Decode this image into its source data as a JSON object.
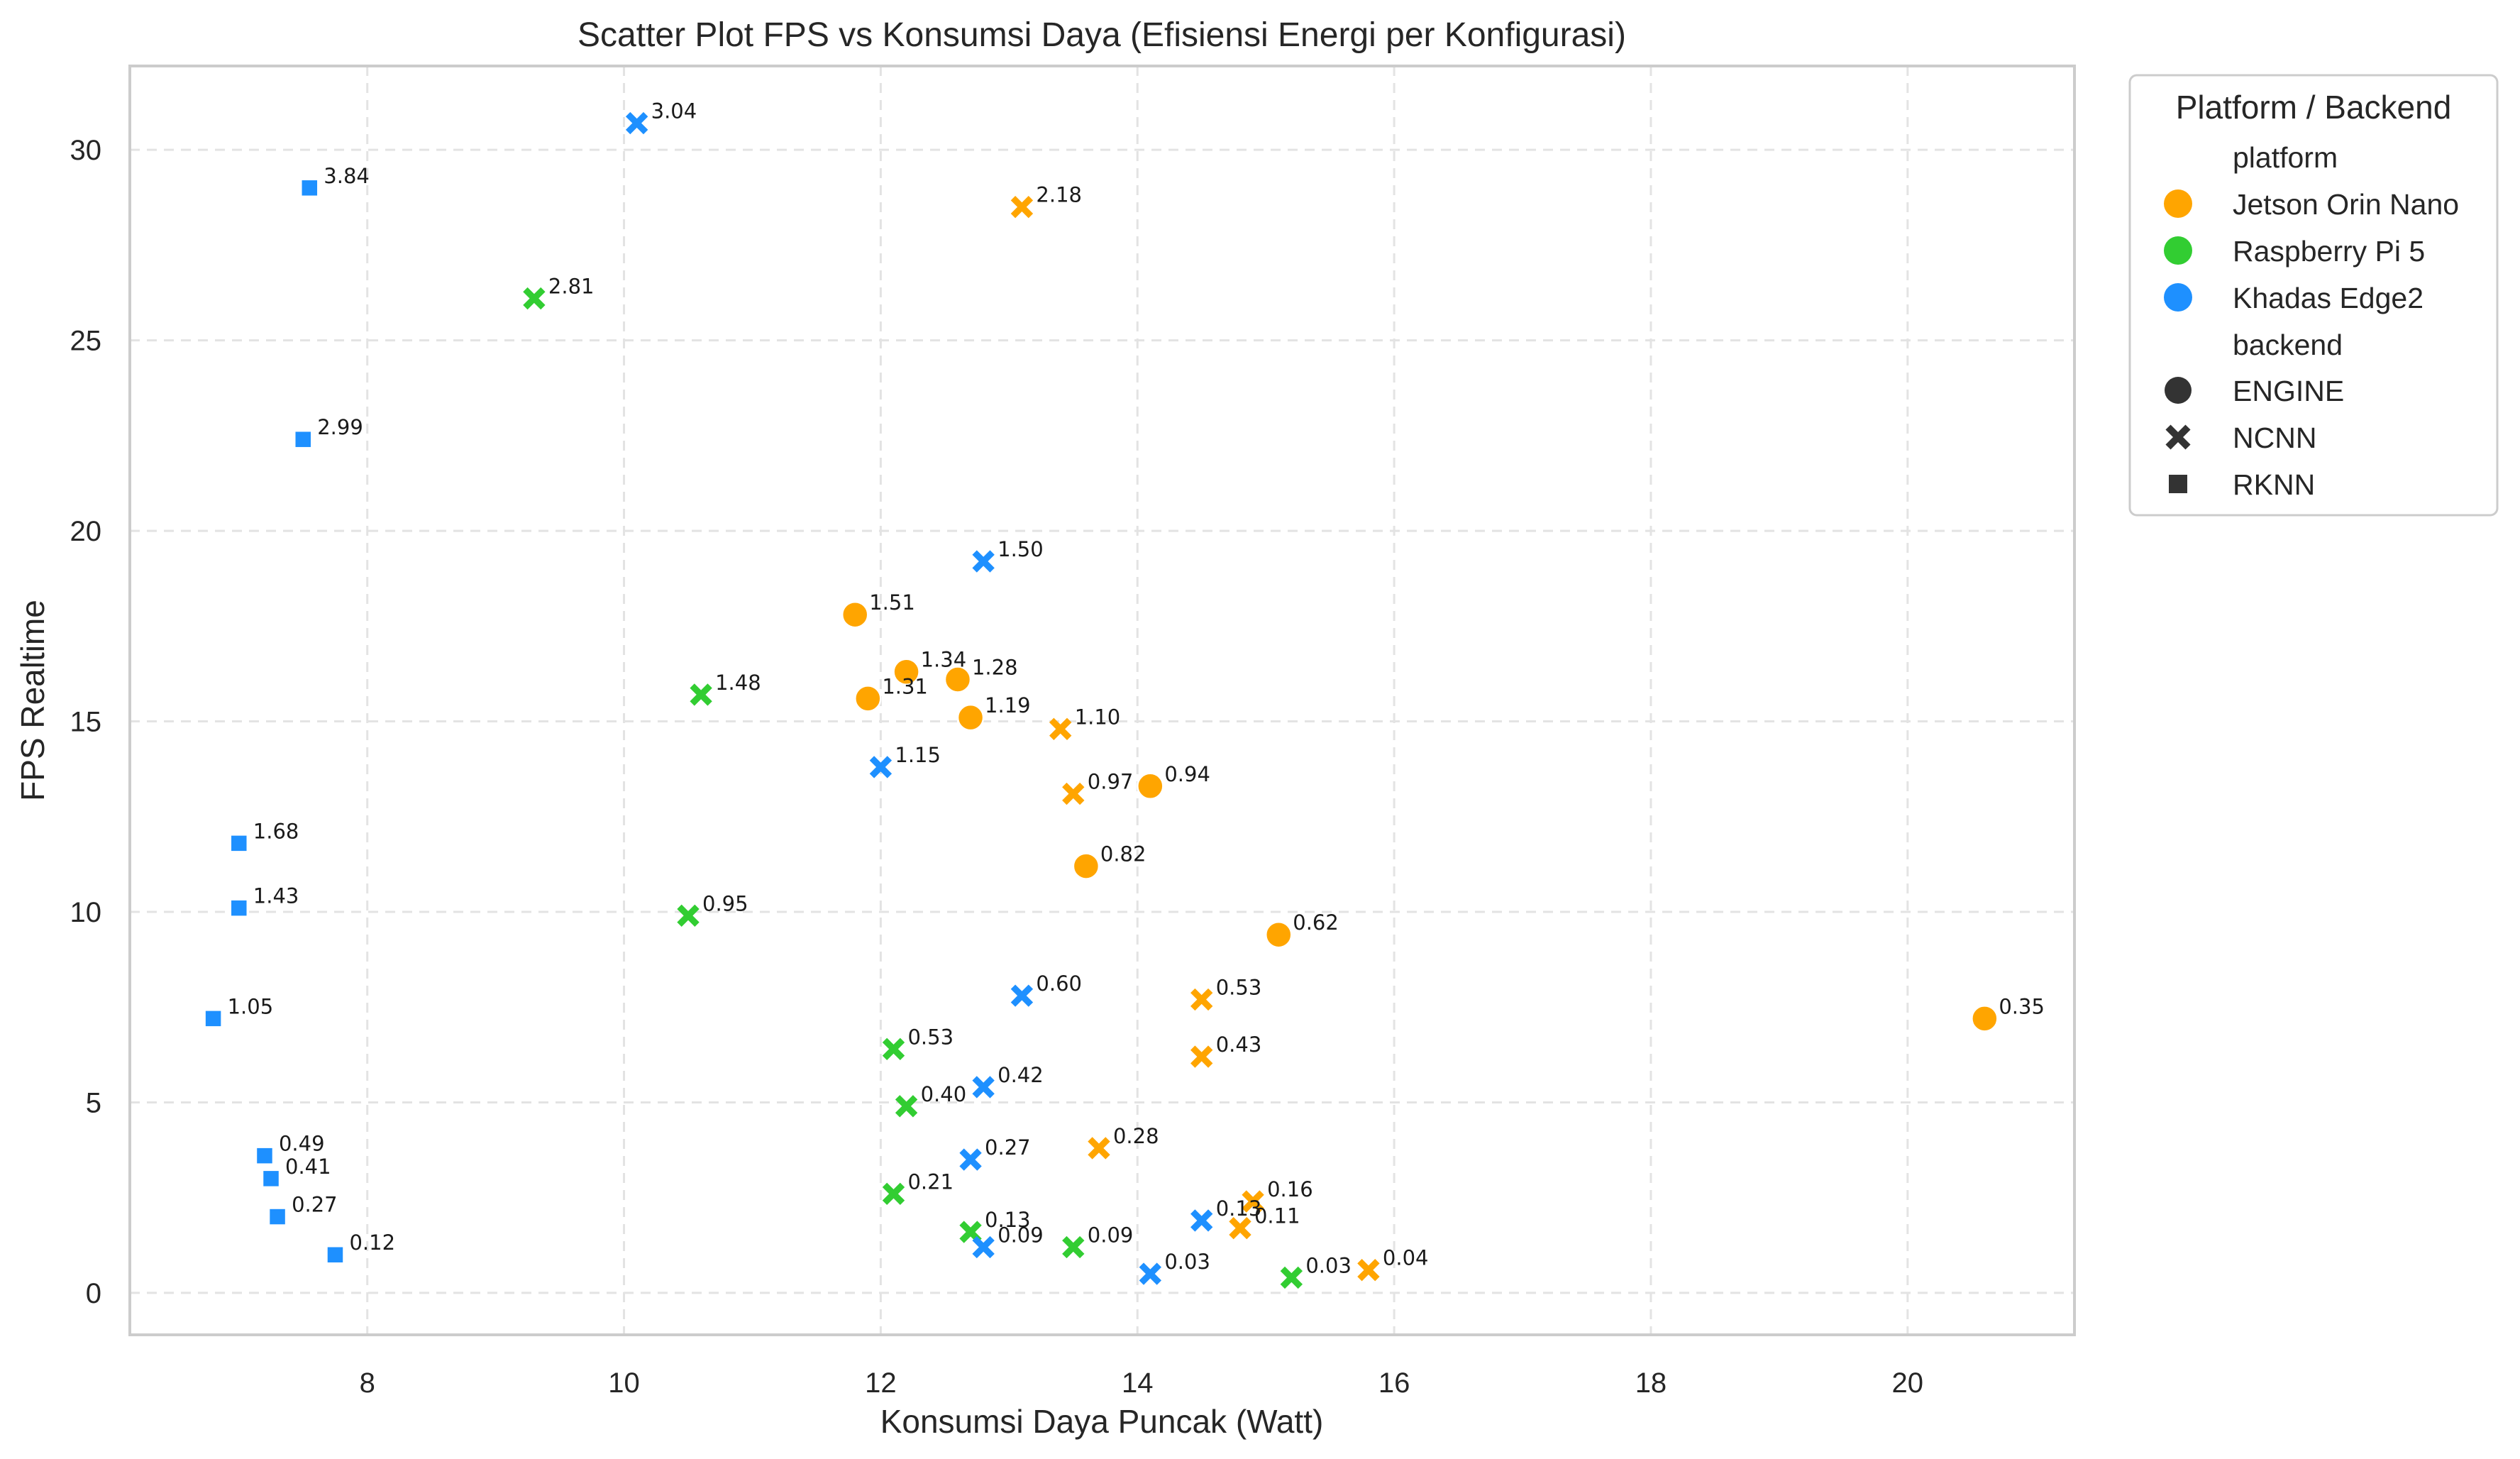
{
  "chart_data": {
    "type": "scatter",
    "title": "Scatter Plot FPS vs Konsumsi Daya (Efisiensi Energi per Konfigurasi)",
    "xlabel": "Konsumsi Daya Puncak (Watt)",
    "ylabel": "FPS Realtime",
    "xlim": [
      6.15,
      21.3
    ],
    "ylim": [
      -1.1,
      32.2
    ],
    "xticks": [
      8,
      10,
      12,
      14,
      16,
      18,
      20
    ],
    "yticks": [
      0,
      5,
      10,
      15,
      20,
      25,
      30
    ],
    "grid": true,
    "legend_position": "outside-right",
    "legend": {
      "title": "Platform / Backend",
      "hue_header": "platform",
      "style_header": "backend",
      "platforms": [
        {
          "name": "Jetson Orin Nano",
          "color": "#FFA500"
        },
        {
          "name": "Raspberry Pi 5",
          "color": "#32CD32"
        },
        {
          "name": "Khadas Edge2",
          "color": "#1E90FF"
        }
      ],
      "backends": [
        {
          "name": "ENGINE",
          "marker": "circle"
        },
        {
          "name": "NCNN",
          "marker": "x"
        },
        {
          "name": "RKNN",
          "marker": "square"
        }
      ]
    },
    "series": [
      {
        "platform": "Jetson Orin Nano",
        "backend": "ENGINE",
        "points": [
          {
            "x": 11.8,
            "y": 17.8,
            "label": "1.51"
          },
          {
            "x": 12.2,
            "y": 16.3,
            "label": "1.34"
          },
          {
            "x": 12.6,
            "y": 16.1,
            "label": "1.28"
          },
          {
            "x": 11.9,
            "y": 15.6,
            "label": "1.31"
          },
          {
            "x": 12.7,
            "y": 15.1,
            "label": "1.19"
          },
          {
            "x": 14.1,
            "y": 13.3,
            "label": "0.94"
          },
          {
            "x": 13.6,
            "y": 11.2,
            "label": "0.82"
          },
          {
            "x": 15.1,
            "y": 9.4,
            "label": "0.62"
          },
          {
            "x": 20.6,
            "y": 7.2,
            "label": "0.35"
          }
        ]
      },
      {
        "platform": "Jetson Orin Nano",
        "backend": "NCNN",
        "points": [
          {
            "x": 13.1,
            "y": 28.5,
            "label": "2.18"
          },
          {
            "x": 13.4,
            "y": 14.8,
            "label": "1.10"
          },
          {
            "x": 13.5,
            "y": 13.1,
            "label": "0.97"
          },
          {
            "x": 14.5,
            "y": 7.7,
            "label": "0.53"
          },
          {
            "x": 14.5,
            "y": 6.2,
            "label": "0.43"
          },
          {
            "x": 13.7,
            "y": 3.8,
            "label": "0.28"
          },
          {
            "x": 14.9,
            "y": 2.4,
            "label": "0.16"
          },
          {
            "x": 14.8,
            "y": 1.7,
            "label": "0.11"
          },
          {
            "x": 15.8,
            "y": 0.6,
            "label": "0.04"
          }
        ]
      },
      {
        "platform": "Raspberry Pi 5",
        "backend": "NCNN",
        "points": [
          {
            "x": 9.3,
            "y": 26.1,
            "label": "2.81"
          },
          {
            "x": 10.6,
            "y": 15.7,
            "label": "1.48"
          },
          {
            "x": 10.5,
            "y": 9.9,
            "label": "0.95"
          },
          {
            "x": 12.1,
            "y": 6.4,
            "label": "0.53"
          },
          {
            "x": 12.2,
            "y": 4.9,
            "label": "0.40"
          },
          {
            "x": 12.1,
            "y": 2.6,
            "label": "0.21"
          },
          {
            "x": 12.7,
            "y": 1.6,
            "label": "0.13"
          },
          {
            "x": 13.5,
            "y": 1.2,
            "label": "0.09"
          },
          {
            "x": 15.2,
            "y": 0.4,
            "label": "0.03"
          }
        ]
      },
      {
        "platform": "Khadas Edge2",
        "backend": "NCNN",
        "points": [
          {
            "x": 10.1,
            "y": 30.7,
            "label": "3.04"
          },
          {
            "x": 12.8,
            "y": 19.2,
            "label": "1.50"
          },
          {
            "x": 12.0,
            "y": 13.8,
            "label": "1.15"
          },
          {
            "x": 13.1,
            "y": 7.8,
            "label": "0.60"
          },
          {
            "x": 12.8,
            "y": 5.4,
            "label": "0.42"
          },
          {
            "x": 12.7,
            "y": 3.5,
            "label": "0.27"
          },
          {
            "x": 14.5,
            "y": 1.9,
            "label": "0.13"
          },
          {
            "x": 12.8,
            "y": 1.2,
            "label": "0.09"
          },
          {
            "x": 14.1,
            "y": 0.5,
            "label": "0.03"
          }
        ]
      },
      {
        "platform": "Khadas Edge2",
        "backend": "RKNN",
        "points": [
          {
            "x": 7.55,
            "y": 29.0,
            "label": "3.84"
          },
          {
            "x": 7.5,
            "y": 22.4,
            "label": "2.99"
          },
          {
            "x": 7.0,
            "y": 11.8,
            "label": "1.68"
          },
          {
            "x": 7.0,
            "y": 10.1,
            "label": "1.43"
          },
          {
            "x": 6.8,
            "y": 7.2,
            "label": "1.05"
          },
          {
            "x": 7.2,
            "y": 3.6,
            "label": "0.49"
          },
          {
            "x": 7.25,
            "y": 3.0,
            "label": "0.41"
          },
          {
            "x": 7.3,
            "y": 2.0,
            "label": "0.27"
          },
          {
            "x": 7.75,
            "y": 1.0,
            "label": "0.12"
          }
        ]
      }
    ]
  }
}
